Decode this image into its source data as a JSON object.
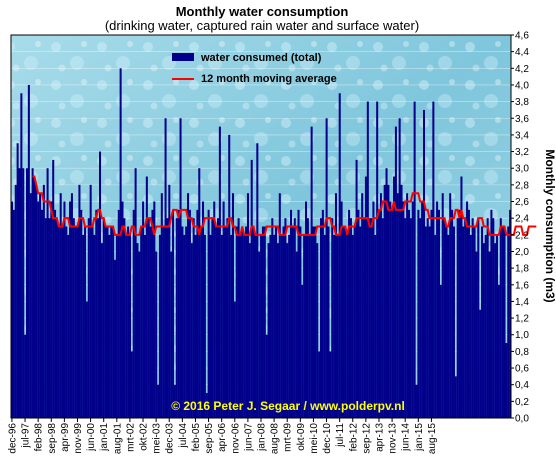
{
  "chart_data": {
    "type": "bar",
    "title": "Monthly  water consumption",
    "subtitle": "(drinking  water, captured rain  water and surface water)",
    "ylabel": "Monthly consumption (m3)",
    "ylim": [
      0,
      4.6
    ],
    "y_ticks": [
      "0,0",
      "0,2",
      "0,4",
      "0,6",
      "0,8",
      "1,0",
      "1,2",
      "1,4",
      "1,6",
      "1,8",
      "2,0",
      "2,2",
      "2,4",
      "2,6",
      "2,8",
      "3,0",
      "3,2",
      "3,4",
      "3,6",
      "3,8",
      "4,0",
      "4,2",
      "4,4",
      "4,6"
    ],
    "x_ticks": [
      "dec-96",
      "jul-97",
      "feb-98",
      "sep-98",
      "apr-99",
      "nov-99",
      "jun-00",
      "jan-01",
      "aug-01",
      "mrt-02",
      "okt-02",
      "mei-03",
      "dec-03",
      "jul-04",
      "feb-05",
      "sep-05",
      "apr-06",
      "nov-06",
      "jun-07",
      "jan-08",
      "aug-08",
      "mrt-09",
      "okt-09",
      "mei-10",
      "dec-10",
      "jul-11",
      "feb-12",
      "sep-12",
      "apr-13",
      "nov-13",
      "jun-14",
      "jan-15",
      "aug-15"
    ],
    "grid": true,
    "legend_position": "top-center",
    "copyright": "© 2016 Peter J. Segaar / www.polderpv.nl",
    "series": [
      {
        "name": "water consumed (total)",
        "type": "bar",
        "color": "#00008b",
        "values": [
          2.6,
          2.5,
          2.8,
          3.3,
          3.0,
          3.9,
          3.0,
          1.0,
          3.0,
          4.0,
          2.7,
          3.0,
          2.9,
          2.8,
          2.6,
          2.7,
          2.5,
          2.8,
          2.4,
          3.0,
          2.4,
          2.6,
          3.1,
          2.5,
          2.4,
          2.3,
          2.7,
          2.3,
          2.6,
          2.3,
          2.2,
          2.6,
          2.7,
          2.4,
          2.3,
          2.3,
          2.8,
          2.5,
          2.2,
          2.3,
          1.4,
          2.4,
          2.8,
          2.3,
          2.2,
          2.5,
          2.4,
          3.2,
          2.1,
          2.4,
          2.3,
          2.3,
          2.2,
          2.3,
          2.3,
          1.9,
          2.2,
          2.5,
          4.2,
          2.6,
          2.4,
          2.2,
          2.3,
          2.2,
          0.8,
          2.5,
          3.0,
          2.1,
          2.0,
          2.3,
          2.6,
          2.2,
          2.9,
          2.4,
          2.3,
          2.5,
          2.6,
          2.0,
          0.4,
          2.2,
          2.7,
          2.3,
          3.6,
          2.4,
          2.8,
          2.0,
          2.5,
          0.4,
          2.4,
          2.5,
          3.6,
          2.3,
          2.2,
          2.3,
          2.7,
          2.5,
          2.1,
          2.4,
          2.2,
          2.5,
          3.0,
          2.3,
          2.6,
          2.2,
          0.3,
          2.5,
          2.2,
          2.4,
          2.6,
          2.3,
          2.4,
          3.5,
          2.2,
          2.6,
          2.3,
          2.4,
          3.4,
          2.2,
          2.7,
          1.4,
          2.3,
          2.4,
          2.2,
          2.3,
          2.2,
          2.3,
          2.7,
          2.1,
          3.1,
          2.3,
          2.2,
          3.3,
          2.0,
          2.2,
          2.3,
          2.3,
          1.0,
          2.1,
          2.2,
          2.4,
          2.2,
          2.3,
          2.1,
          2.7,
          2.2,
          2.3,
          2.4,
          2.1,
          2.2,
          2.5,
          2.3,
          2.4,
          2.0,
          2.5,
          2.3,
          1.6,
          2.2,
          2.6,
          2.4,
          2.2,
          3.5,
          2.3,
          2.3,
          2.1,
          0.8,
          2.4,
          2.5,
          2.2,
          3.6,
          2.3,
          0.8,
          2.4,
          2.2,
          2.7,
          2.2,
          3.9,
          2.6,
          2.3,
          2.3,
          2.2,
          2.5,
          2.4,
          2.2,
          2.3,
          3.1,
          2.5,
          2.3,
          2.7,
          2.4,
          2.9,
          3.8,
          2.4,
          2.4,
          2.6,
          2.2,
          3.8,
          2.5,
          2.7,
          2.4,
          2.8,
          3.0,
          2.8,
          2.6,
          2.5,
          2.9,
          3.5,
          2.7,
          3.6,
          2.8,
          2.6,
          2.4,
          2.7,
          2.5,
          2.4,
          2.6,
          3.8,
          0.4,
          2.5,
          2.4,
          2.6,
          3.7,
          2.3,
          2.4,
          2.3,
          2.5,
          3.8,
          2.2,
          2.6,
          2.5,
          1.6,
          2.7,
          2.4,
          2.3,
          2.2,
          2.7,
          2.5,
          2.3,
          0.5,
          2.4,
          2.5,
          2.9,
          2.3,
          2.4,
          2.6,
          2.5,
          2.2,
          2.4,
          2.3,
          2.0,
          2.4,
          1.3,
          2.3,
          2.1,
          2.2,
          2.4,
          2.0,
          2.5,
          2.4,
          2.1,
          2.2,
          1.6,
          2.4,
          2.3,
          2.3,
          0.9,
          2.3,
          2.5
        ]
      },
      {
        "name": "12 month moving average",
        "type": "line",
        "color": "#ff0000",
        "values": [
          2.9,
          2.9,
          2.8,
          2.7,
          2.7,
          2.7,
          2.6,
          2.6,
          2.6,
          2.6,
          2.5,
          2.4,
          2.4,
          2.4,
          2.3,
          2.3,
          2.3,
          2.4,
          2.4,
          2.4,
          2.3,
          2.3,
          2.3,
          2.3,
          2.3,
          2.4,
          2.4,
          2.4,
          2.3,
          2.3,
          2.3,
          2.3,
          2.3,
          2.4,
          2.4,
          2.5,
          2.5,
          2.4,
          2.4,
          2.3,
          2.3,
          2.3,
          2.3,
          2.3,
          2.2,
          2.2,
          2.2,
          2.2,
          2.3,
          2.3,
          2.2,
          2.2,
          2.2,
          2.3,
          2.3,
          2.2,
          2.2,
          2.2,
          2.3,
          2.3,
          2.3,
          2.4,
          2.4,
          2.4,
          2.3,
          2.2,
          2.3,
          2.3,
          2.3,
          2.3,
          2.3,
          2.3,
          2.3,
          2.3,
          2.4,
          2.5,
          2.5,
          2.5,
          2.4,
          2.5,
          2.5,
          2.5,
          2.5,
          2.4,
          2.4,
          2.4,
          2.3,
          2.3,
          2.3,
          2.2,
          2.3,
          2.3,
          2.4,
          2.4,
          2.4,
          2.4,
          2.4,
          2.4,
          2.3,
          2.3,
          2.3,
          2.3,
          2.3,
          2.3,
          2.3,
          2.4,
          2.4,
          2.3,
          2.3,
          2.2,
          2.2,
          2.2,
          2.3,
          2.2,
          2.2,
          2.2,
          2.2,
          2.3,
          2.3,
          2.2,
          2.2,
          2.2,
          2.2,
          2.2,
          2.2,
          2.3,
          2.3,
          2.3,
          2.3,
          2.3,
          2.3,
          2.3,
          2.2,
          2.2,
          2.2,
          2.2,
          2.3,
          2.3,
          2.3,
          2.3,
          2.3,
          2.3,
          2.2,
          2.2,
          2.2,
          2.2,
          2.2,
          2.2,
          2.2,
          2.2,
          2.2,
          2.2,
          2.3,
          2.3,
          2.3,
          2.3,
          2.3,
          2.4,
          2.4,
          2.4,
          2.3,
          2.3,
          2.2,
          2.2,
          2.2,
          2.3,
          2.3,
          2.3,
          2.2,
          2.3,
          2.3,
          2.3,
          2.3,
          2.4,
          2.4,
          2.4,
          2.4,
          2.4,
          2.4,
          2.4,
          2.3,
          2.3,
          2.4,
          2.4,
          2.4,
          2.5,
          2.5,
          2.6,
          2.6,
          2.6,
          2.5,
          2.5,
          2.5,
          2.6,
          2.5,
          2.5,
          2.5,
          2.5,
          2.5,
          2.6,
          2.6,
          2.6,
          2.6,
          2.7,
          2.7,
          2.7,
          2.7,
          2.6,
          2.6,
          2.6,
          2.5,
          2.5,
          2.4,
          2.4,
          2.4,
          2.4,
          2.4,
          2.4,
          2.4,
          2.4,
          2.4,
          2.3,
          2.3,
          2.4,
          2.4,
          2.4,
          2.5,
          2.5,
          2.4,
          2.5,
          2.4,
          2.4,
          2.3,
          2.3,
          2.3,
          2.3,
          2.3,
          2.3,
          2.4,
          2.4,
          2.4,
          2.3,
          2.3,
          2.3,
          2.2,
          2.2,
          2.2,
          2.2,
          2.2,
          2.2,
          2.3,
          2.3,
          2.3,
          2.2,
          2.2,
          2.2,
          2.2,
          2.2,
          2.3,
          2.3,
          2.3,
          2.3,
          2.2,
          2.2,
          2.2,
          2.3,
          2.3,
          2.3,
          2.3,
          2.3
        ]
      }
    ]
  }
}
